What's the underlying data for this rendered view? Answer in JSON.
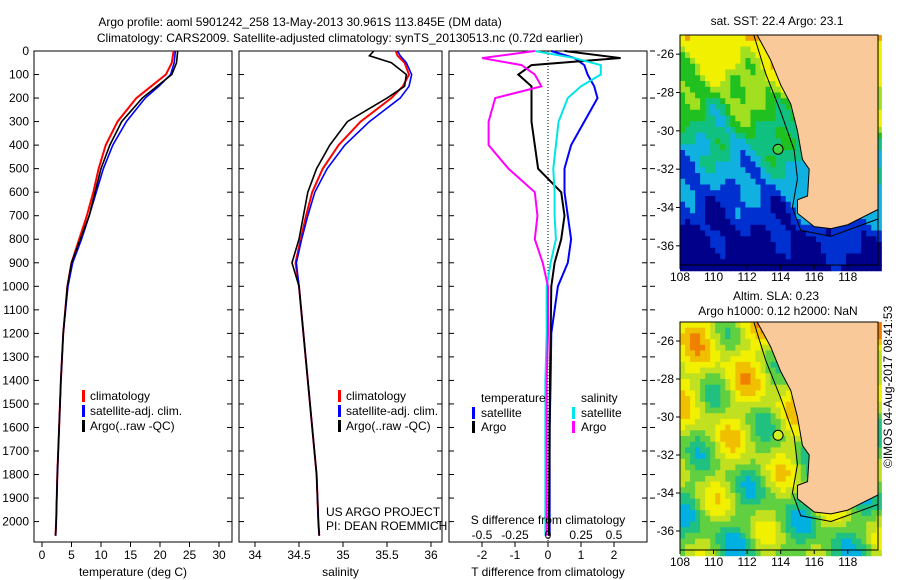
{
  "title": {
    "line1": "Argo profile: aoml 5901242_258 13-May-2013 30.961S 113.845E (DM data)",
    "line2": "Climatology: CARS2009. Satellite-adjusted climatology: synTS_20130513.nc (0.72d earlier)"
  },
  "depth_ticks": [
    "0",
    "100",
    "200",
    "300",
    "400",
    "500",
    "600",
    "700",
    "800",
    "900",
    "1000",
    "1100",
    "1200",
    "1300",
    "1400",
    "1500",
    "1600",
    "1700",
    "1800",
    "1900",
    "2000"
  ],
  "colors": {
    "climatology": "#ff0000",
    "satellite": "#0000ff",
    "argo": "#000000",
    "sal_sat": "#00e5e5",
    "sal_argo": "#ff00ff",
    "land": "#f9c99a"
  },
  "chart_data": [
    {
      "type": "line",
      "xlabel": "temperature (deg C)",
      "xlim": [
        -1.5,
        32
      ],
      "ylim": [
        2090,
        0
      ],
      "xticks": [
        "0",
        "5",
        "10",
        "15",
        "20",
        "25",
        "30"
      ],
      "legend": [
        "climatology",
        "satellite-adj. clim.",
        "Argo(..raw -QC)"
      ],
      "depth": [
        0,
        50,
        100,
        150,
        200,
        300,
        400,
        500,
        600,
        700,
        800,
        900,
        1000,
        1200,
        1400,
        1600,
        1800,
        2000,
        2060
      ],
      "series": [
        {
          "name": "climatology",
          "values": [
            22.3,
            22,
            21,
            18.5,
            16,
            12.8,
            10.8,
            9.6,
            8.7,
            7.6,
            6.3,
            5,
            4.3,
            3.6,
            3.2,
            2.9,
            2.6,
            2.4,
            2.3
          ]
        },
        {
          "name": "satellite-adj. clim.",
          "values": [
            22.6,
            22.4,
            21.8,
            19.8,
            17.5,
            14.3,
            12,
            10.4,
            9.2,
            8,
            6.7,
            5.2,
            4.4,
            3.6,
            3.2,
            2.9,
            2.6,
            2.4,
            2.3
          ]
        },
        {
          "name": "Argo(..raw -QC)",
          "values": [
            23,
            22.8,
            22,
            19.5,
            17,
            13.5,
            11.5,
            10,
            9,
            8,
            6.5,
            5,
            4.3,
            3.6,
            3.2,
            2.9,
            2.6,
            2.4,
            2.3
          ]
        }
      ],
      "annotation": ""
    },
    {
      "type": "line",
      "xlabel": "salinity",
      "xlim": [
        33.82,
        36.12
      ],
      "ylim": [
        2090,
        0
      ],
      "xticks": [
        "34",
        "34.5",
        "35",
        "35.5",
        "36"
      ],
      "legend": [
        "climatology",
        "satellite-adj. clim.",
        "Argo(..raw -QC)"
      ],
      "depth": [
        0,
        20,
        50,
        100,
        150,
        200,
        300,
        400,
        500,
        600,
        700,
        800,
        900,
        1000,
        1200,
        1400,
        1600,
        1800,
        2000,
        2060
      ],
      "series": [
        {
          "name": "climatology",
          "values": [
            35.6,
            35.62,
            35.7,
            35.75,
            35.68,
            35.55,
            35.2,
            34.95,
            34.77,
            34.65,
            34.58,
            34.52,
            34.46,
            34.5,
            34.55,
            34.6,
            34.65,
            34.7,
            34.72,
            34.73
          ]
        },
        {
          "name": "satellite-adj. clim.",
          "values": [
            35.62,
            35.65,
            35.72,
            35.78,
            35.75,
            35.65,
            35.3,
            35.02,
            34.82,
            34.68,
            34.6,
            34.53,
            34.47,
            34.5,
            34.55,
            34.6,
            34.65,
            34.7,
            34.72,
            34.73
          ]
        },
        {
          "name": "Argo(..raw -QC)",
          "values": [
            35.35,
            35.3,
            35.55,
            35.72,
            35.7,
            35.5,
            35.05,
            34.85,
            34.7,
            34.6,
            34.55,
            34.5,
            34.42,
            34.5,
            34.55,
            34.6,
            34.65,
            34.7,
            34.72,
            34.73
          ]
        }
      ],
      "annotation": [
        "US ARGO PROJECT",
        "PI: DEAN ROEMMICH"
      ]
    },
    {
      "type": "line",
      "xlabel": "T difference from climatology",
      "xlabel2": "S difference from climatology",
      "xlim": [
        -3,
        3
      ],
      "ylim": [
        2090,
        0
      ],
      "xticks": [
        "-2",
        "-1",
        "0",
        "1",
        "2"
      ],
      "xticks2": [
        "-0.5",
        "-0.25",
        "0",
        "0.25",
        "0.5"
      ],
      "legend_title_t": "temperature",
      "legend_title_s": "salinity",
      "legend": [
        "satellite",
        "Argo",
        "satellite",
        "Argo"
      ],
      "depth": [
        0,
        30,
        60,
        100,
        150,
        200,
        300,
        400,
        500,
        600,
        700,
        800,
        900,
        1000,
        1200,
        1400,
        1600,
        1800,
        2000,
        2060
      ],
      "series": [
        {
          "name": "T satellite",
          "values": [
            0.1,
            0.8,
            1.1,
            1.2,
            1.4,
            1.5,
            1.1,
            0.7,
            0.5,
            0.5,
            0.6,
            0.7,
            0.6,
            0.3,
            0.1,
            0.08,
            0.05,
            0.05,
            0.05,
            0.05
          ]
        },
        {
          "name": "T Argo",
          "values": [
            0.5,
            2.2,
            -0.5,
            -0.9,
            -0.5,
            -0.5,
            -0.5,
            -0.4,
            -0.3,
            0.4,
            0.5,
            0.4,
            0.2,
            0.1,
            0.08,
            0.06,
            0.05,
            0.04,
            0.03,
            0.03
          ]
        },
        {
          "name": "S satellite",
          "values": [
            -0.1,
            0.2,
            0.4,
            0.4,
            0.25,
            0.15,
            0.08,
            0.06,
            0.04,
            0.05,
            0.05,
            0.06,
            0.02,
            -0.01,
            -0.01,
            -0.02,
            -0.02,
            -0.02,
            -0.02,
            -0.02
          ]
        },
        {
          "name": "S Argo",
          "values": [
            -0.1,
            -0.5,
            -0.2,
            -0.1,
            -0.05,
            -0.4,
            -0.45,
            -0.45,
            -0.3,
            -0.1,
            -0.08,
            -0.1,
            -0.04,
            0.0,
            0.0,
            -0.01,
            -0.01,
            -0.01,
            -0.01,
            -0.01
          ]
        }
      ]
    },
    {
      "type": "heatmap",
      "title": "sat. SST: 22.4 Argo: 23.1",
      "xlim": [
        108,
        119.8
      ],
      "ylim": [
        -37,
        -25
      ],
      "xticks": [
        "108",
        "110",
        "112",
        "114",
        "116",
        "118"
      ],
      "yticks": [
        "-26",
        "-28",
        "-30",
        "-32",
        "-34",
        "-36"
      ],
      "float_position": [
        113.845,
        -30.961
      ]
    },
    {
      "type": "heatmap",
      "title": "Altim. SLA: 0.23",
      "subtitle": "Argo h1000: 0.12 h2000: NaN",
      "xlim": [
        108,
        119.8
      ],
      "ylim": [
        -37,
        -25
      ],
      "xticks": [
        "108",
        "110",
        "112",
        "114",
        "116",
        "118"
      ],
      "yticks": [
        "-26",
        "-28",
        "-30",
        "-32",
        "-34",
        "-36"
      ],
      "float_position": [
        113.845,
        -30.961
      ]
    }
  ],
  "credit": "©IMOS 04-Aug-2017 08:41:53"
}
